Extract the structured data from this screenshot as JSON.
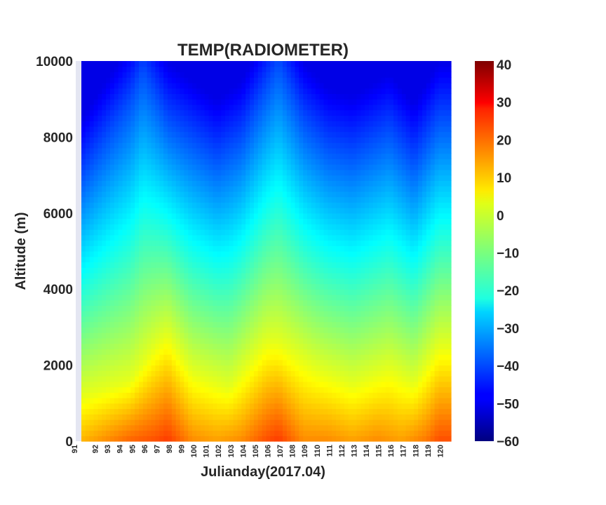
{
  "chart_data": {
    "type": "heatmap",
    "title": "TEMP(RADIOMETER)",
    "xlabel": "Julianday(2017.04)",
    "ylabel": "Altitude (m)",
    "xlim": [
      91,
      121
    ],
    "ylim": [
      0,
      10000
    ],
    "x_ticks": [
      "91",
      "92",
      "93",
      "94",
      "95",
      "96",
      "97",
      "98",
      "99",
      "100",
      "101",
      "102",
      "103",
      "104",
      "105",
      "106",
      "107",
      "108",
      "109",
      "110",
      "111",
      "112",
      "113",
      "114",
      "115",
      "116",
      "117",
      "118",
      "119",
      "120"
    ],
    "y_ticks": [
      "0",
      "2000",
      "4000",
      "6000",
      "8000",
      "10000"
    ],
    "colorbar": {
      "colormap": "jet",
      "range": [
        -60,
        40
      ],
      "ticks": [
        "40",
        "30",
        "20",
        "10",
        "0",
        "−10",
        "−20",
        "−30",
        "−40",
        "−50",
        "−60"
      ]
    },
    "surface_temperature_by_day": [
      {
        "day": 91,
        "t": 10
      },
      {
        "day": 93,
        "t": 14
      },
      {
        "day": 95,
        "t": 18
      },
      {
        "day": 97,
        "t": 20
      },
      {
        "day": 98,
        "t": 22
      },
      {
        "day": 100,
        "t": 14
      },
      {
        "day": 102,
        "t": 12
      },
      {
        "day": 104,
        "t": 14
      },
      {
        "day": 106,
        "t": 20
      },
      {
        "day": 107,
        "t": 22
      },
      {
        "day": 109,
        "t": 14
      },
      {
        "day": 111,
        "t": 14
      },
      {
        "day": 113,
        "t": 12
      },
      {
        "day": 115,
        "t": 14
      },
      {
        "day": 117,
        "t": 12
      },
      {
        "day": 119,
        "t": 16
      },
      {
        "day": 120,
        "t": 20
      }
    ],
    "zero_degree_level_m_by_day": [
      {
        "day": 91,
        "alt": 1200
      },
      {
        "day": 95,
        "alt": 1600
      },
      {
        "day": 97,
        "alt": 2500
      },
      {
        "day": 98,
        "alt": 2800
      },
      {
        "day": 100,
        "alt": 1800
      },
      {
        "day": 103,
        "alt": 1400
      },
      {
        "day": 106,
        "alt": 2600
      },
      {
        "day": 107,
        "alt": 2600
      },
      {
        "day": 110,
        "alt": 1900
      },
      {
        "day": 113,
        "alt": 1500
      },
      {
        "day": 116,
        "alt": 1900
      },
      {
        "day": 118,
        "alt": 1500
      },
      {
        "day": 120,
        "alt": 2500
      }
    ],
    "minus40_level_m_by_day": [
      {
        "day": 91,
        "alt": 7000
      },
      {
        "day": 95,
        "alt": 9000
      },
      {
        "day": 96,
        "alt": 9800
      },
      {
        "day": 98,
        "alt": 8500
      },
      {
        "day": 100,
        "alt": 8000
      },
      {
        "day": 102,
        "alt": 7500
      },
      {
        "day": 104,
        "alt": 8000
      },
      {
        "day": 107,
        "alt": 10000
      },
      {
        "day": 109,
        "alt": 8500
      },
      {
        "day": 111,
        "alt": 7800
      },
      {
        "day": 113,
        "alt": 7600
      },
      {
        "day": 116,
        "alt": 8200
      },
      {
        "day": 118,
        "alt": 7400
      },
      {
        "day": 120,
        "alt": 8500
      }
    ]
  }
}
